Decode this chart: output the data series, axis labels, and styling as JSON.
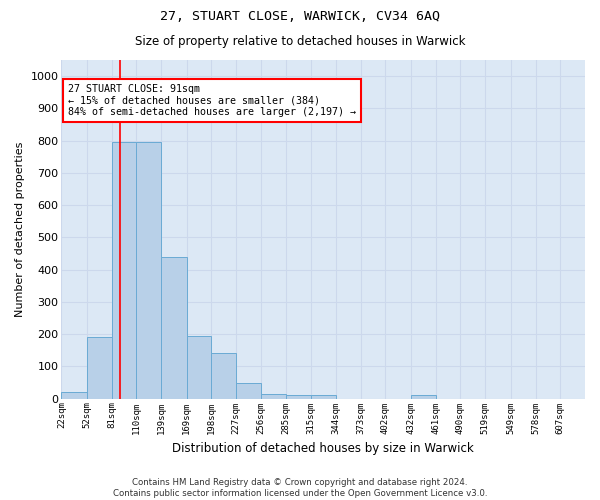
{
  "title1": "27, STUART CLOSE, WARWICK, CV34 6AQ",
  "title2": "Size of property relative to detached houses in Warwick",
  "xlabel": "Distribution of detached houses by size in Warwick",
  "ylabel": "Number of detached properties",
  "bin_labels": [
    "22sqm",
    "52sqm",
    "81sqm",
    "110sqm",
    "139sqm",
    "169sqm",
    "198sqm",
    "227sqm",
    "256sqm",
    "285sqm",
    "315sqm",
    "344sqm",
    "373sqm",
    "402sqm",
    "432sqm",
    "461sqm",
    "490sqm",
    "519sqm",
    "549sqm",
    "578sqm",
    "607sqm"
  ],
  "bin_edges": [
    22,
    52,
    81,
    110,
    139,
    169,
    198,
    227,
    256,
    285,
    315,
    344,
    373,
    402,
    432,
    461,
    490,
    519,
    549,
    578,
    607,
    636
  ],
  "bar_heights": [
    20,
    190,
    795,
    795,
    440,
    195,
    140,
    48,
    15,
    12,
    12,
    0,
    0,
    0,
    10,
    0,
    0,
    0,
    0,
    0,
    0
  ],
  "bar_color": "#b8d0e8",
  "bar_edge_color": "#6aaad4",
  "vline_x": 91,
  "vline_color": "red",
  "annotation_text": "27 STUART CLOSE: 91sqm\n← 15% of detached houses are smaller (384)\n84% of semi-detached houses are larger (2,197) →",
  "annotation_box_color": "white",
  "annotation_box_edge": "red",
  "ylim": [
    0,
    1050
  ],
  "yticks": [
    0,
    100,
    200,
    300,
    400,
    500,
    600,
    700,
    800,
    900,
    1000
  ],
  "grid_color": "#ccd8ec",
  "plot_bg_color": "#dce8f5",
  "fig_bg_color": "#ffffff",
  "footer": "Contains HM Land Registry data © Crown copyright and database right 2024.\nContains public sector information licensed under the Open Government Licence v3.0."
}
